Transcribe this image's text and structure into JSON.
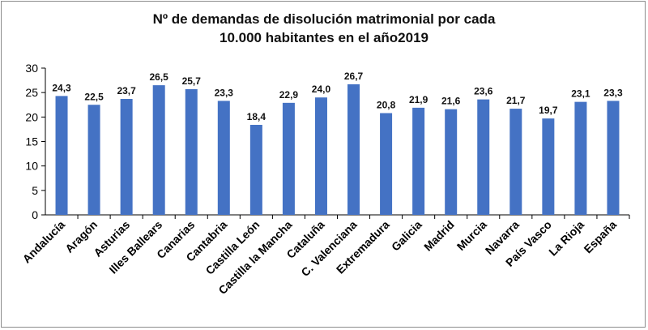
{
  "chart_data": {
    "type": "bar",
    "title_line1": "Nº de demandas de disolución matrimonial  por cada",
    "title_line2": "10.000  habitantes  en el año2019",
    "xlabel": "",
    "ylabel": "",
    "ylim": [
      0,
      30
    ],
    "yticks": [
      0,
      5,
      10,
      15,
      20,
      25,
      30
    ],
    "grid": false,
    "legend": "none",
    "bar_color": "#4472c4",
    "categories": [
      "Andalucía",
      "Aragón",
      "Asturias",
      "Illes Ballears",
      "Canarias",
      "Cantabria",
      "Castilla León",
      "Castilla la Mancha",
      "Cataluña",
      "C. Valenciana",
      "Extremadura",
      "Galicia",
      "Madrid",
      "Murcia",
      "Navarra",
      "País Vasco",
      "La Rioja",
      "España"
    ],
    "values": [
      24.3,
      22.5,
      23.7,
      26.5,
      25.7,
      23.3,
      18.4,
      22.9,
      24.0,
      26.7,
      20.8,
      21.9,
      21.6,
      23.6,
      21.7,
      19.7,
      23.1,
      23.3
    ],
    "value_labels": [
      "24,3",
      "22,5",
      "23,7",
      "26,5",
      "25,7",
      "23,3",
      "18,4",
      "22,9",
      "24,0",
      "26,7",
      "20,8",
      "21,9",
      "21,6",
      "23,6",
      "21,7",
      "19,7",
      "23,1",
      "23,3"
    ]
  }
}
